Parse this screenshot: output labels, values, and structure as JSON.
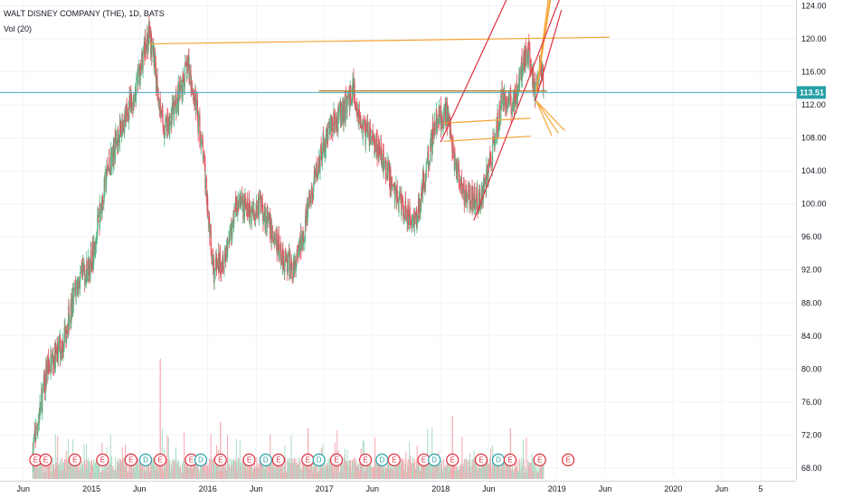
{
  "header": {
    "symbol_title": "WALT DISNEY COMPANY (THE), 1D, BATS",
    "volume_label": "Vol (20)"
  },
  "colors": {
    "up": "#53b987",
    "down": "#eb4d5c",
    "vol_up": "#a8dcc4",
    "vol_down": "#f5a6ae",
    "price_line": "#4aa9c7",
    "price_tag": "#26a0a7",
    "orange": "#f6a535",
    "red_channel": "#e0303f",
    "grid": "#f0f3fa"
  },
  "chart_data": {
    "type": "candlestick",
    "title": "WALT DISNEY COMPANY (THE), 1D, BATS",
    "ylim": [
      67,
      124.5
    ],
    "y_ticks": [
      "124.00",
      "120.00",
      "116.00",
      "112.00",
      "108.00",
      "104.00",
      "100.00",
      "96.00",
      "92.00",
      "88.00",
      "84.00",
      "80.00",
      "76.00",
      "72.00",
      "68.00"
    ],
    "x_ticks": [
      "Jun",
      "2015",
      "Jun",
      "2016",
      "Jun",
      "2017",
      "Jun",
      "2018",
      "Jun",
      "2019",
      "Jun",
      "2020",
      "Jun",
      "5"
    ],
    "last_price": "113.51",
    "price_path": [
      [
        "2014-07-01",
        70
      ],
      [
        "2014-08-15",
        80
      ],
      [
        "2014-10-01",
        83
      ],
      [
        "2014-11-15",
        90
      ],
      [
        "2015-01-01",
        93
      ],
      [
        "2015-02-20",
        104
      ],
      [
        "2015-04-01",
        109
      ],
      [
        "2015-05-15",
        113
      ],
      [
        "2015-07-01",
        121
      ],
      [
        "2015-08-15",
        109
      ],
      [
        "2015-09-15",
        111
      ],
      [
        "2015-11-01",
        117
      ],
      [
        "2015-12-15",
        107
      ],
      [
        "2016-01-20",
        92
      ],
      [
        "2016-02-25",
        94
      ],
      [
        "2016-04-01",
        100
      ],
      [
        "2016-05-15",
        99
      ],
      [
        "2016-06-15",
        100
      ],
      [
        "2016-07-15",
        97
      ],
      [
        "2016-09-01",
        93
      ],
      [
        "2016-10-01",
        92
      ],
      [
        "2016-11-15",
        100
      ],
      [
        "2016-12-15",
        105
      ],
      [
        "2017-01-15",
        109
      ],
      [
        "2017-03-01",
        111
      ],
      [
        "2017-04-01",
        114
      ],
      [
        "2017-05-01",
        109
      ],
      [
        "2017-06-15",
        107
      ],
      [
        "2017-07-15",
        104
      ],
      [
        "2017-08-15",
        101
      ],
      [
        "2017-09-15",
        99
      ],
      [
        "2017-10-15",
        98
      ],
      [
        "2017-11-15",
        104
      ],
      [
        "2017-12-15",
        110
      ],
      [
        "2018-01-20",
        111
      ],
      [
        "2018-02-15",
        105
      ],
      [
        "2018-03-15",
        101
      ],
      [
        "2018-04-15",
        101
      ],
      [
        "2018-05-01",
        100
      ],
      [
        "2018-06-01",
        104
      ],
      [
        "2018-07-15",
        113
      ],
      [
        "2018-08-15",
        112
      ],
      [
        "2018-09-15",
        117
      ],
      [
        "2018-10-05",
        119
      ],
      [
        "2018-10-25",
        113
      ],
      [
        "2018-11-10",
        117
      ],
      [
        "2018-11-20",
        115
      ]
    ],
    "volume_spikes": [
      [
        "2015-08-05",
        0.95
      ],
      [
        "2016-02-10",
        0.45
      ],
      [
        "2016-11-11",
        0.4
      ],
      [
        "2018-02-07",
        0.5
      ],
      [
        "2018-08-08",
        0.4
      ]
    ],
    "events": [
      [
        "2014-07-10",
        "E"
      ],
      [
        "2014-08-10",
        "E"
      ],
      [
        "2014-11-10",
        "E"
      ],
      [
        "2015-02-05",
        "E"
      ],
      [
        "2015-05-05",
        "E"
      ],
      [
        "2015-06-20",
        "D"
      ],
      [
        "2015-08-05",
        "E"
      ],
      [
        "2015-11-10",
        "E"
      ],
      [
        "2015-12-10",
        "D"
      ],
      [
        "2016-02-10",
        "E"
      ],
      [
        "2016-05-10",
        "E"
      ],
      [
        "2016-07-01",
        "D"
      ],
      [
        "2016-08-10",
        "E"
      ],
      [
        "2016-11-10",
        "E"
      ],
      [
        "2016-12-15",
        "D"
      ],
      [
        "2017-02-08",
        "E"
      ],
      [
        "2017-05-10",
        "E"
      ],
      [
        "2017-07-01",
        "D"
      ],
      [
        "2017-08-08",
        "E"
      ],
      [
        "2017-11-09",
        "E"
      ],
      [
        "2017-12-12",
        "D"
      ],
      [
        "2018-02-07",
        "E"
      ],
      [
        "2018-05-08",
        "E"
      ],
      [
        "2018-07-01",
        "D"
      ],
      [
        "2018-08-07",
        "E"
      ],
      [
        "2018-11-08",
        "E"
      ],
      [
        "2019-02-05",
        "E"
      ]
    ]
  }
}
